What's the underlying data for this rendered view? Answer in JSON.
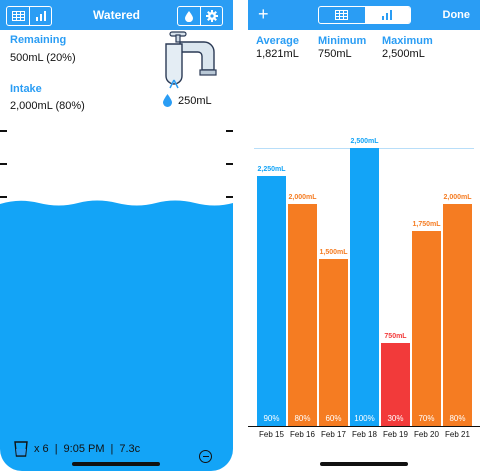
{
  "left": {
    "title": "Watered",
    "remaining": {
      "label": "Remaining",
      "value": "500mL (20%)"
    },
    "intake": {
      "label": "Intake",
      "value": "2,000mL (80%)"
    },
    "serving": "250mL",
    "footer": {
      "count": "x 6",
      "time": "9:05 PM",
      "temp": "7.3c",
      "sep": "|"
    },
    "fill_fraction": 0.8,
    "colors": {
      "accent": "#2a9df4",
      "water": "#13a4f7"
    }
  },
  "right": {
    "add_label": "+",
    "done_label": "Done",
    "stats": [
      {
        "label": "Average",
        "value": "1,821mL"
      },
      {
        "label": "Minimum",
        "value": "750mL"
      },
      {
        "label": "Maximum",
        "value": "2,500mL"
      }
    ]
  },
  "chart_data": {
    "type": "bar",
    "categories": [
      "Feb 15",
      "Feb 16",
      "Feb 17",
      "Feb 18",
      "Feb 19",
      "Feb 20",
      "Feb 21"
    ],
    "values": [
      2250,
      2000,
      1500,
      2500,
      750,
      1750,
      2000
    ],
    "value_labels": [
      "2,250mL",
      "2,000mL",
      "1,500mL",
      "2,500mL",
      "750mL",
      "1,750mL",
      "2,000mL"
    ],
    "percent_labels": [
      "90%",
      "80%",
      "60%",
      "100%",
      "30%",
      "70%",
      "80%"
    ],
    "colors": [
      "#13a4f7",
      "#f57c22",
      "#f57c22",
      "#13a4f7",
      "#f23a3a",
      "#f57c22",
      "#f57c22"
    ],
    "ylim": [
      0,
      2500
    ]
  }
}
